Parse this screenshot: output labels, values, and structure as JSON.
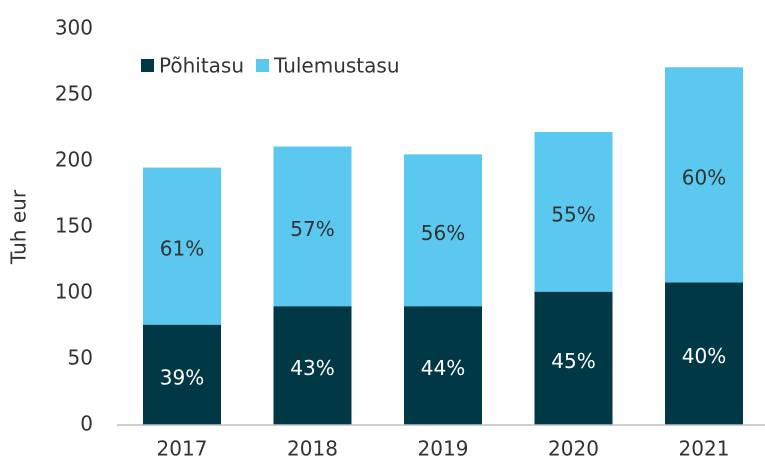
{
  "chart_data": {
    "type": "stacked-bar",
    "y_label": "Tuh eur",
    "categories": [
      "2017",
      "2018",
      "2019",
      "2020",
      "2021"
    ],
    "series": [
      {
        "name": "Põhitasu",
        "color": "#003845",
        "values": [
          76,
          90,
          90,
          101,
          108
        ],
        "labels": [
          "39%",
          "43%",
          "44%",
          "45%",
          "40%"
        ],
        "label_color": "#ffffff"
      },
      {
        "name": "Tulemustasu",
        "color": "#5bc8f0",
        "values": [
          119,
          121,
          115,
          121,
          163
        ],
        "labels": [
          "61%",
          "57%",
          "56%",
          "55%",
          "60%"
        ],
        "label_color": "#333333"
      }
    ],
    "ylim": [
      0,
      300
    ],
    "yticks": [
      0,
      50,
      100,
      150,
      200,
      250,
      300
    ],
    "grid": false
  }
}
